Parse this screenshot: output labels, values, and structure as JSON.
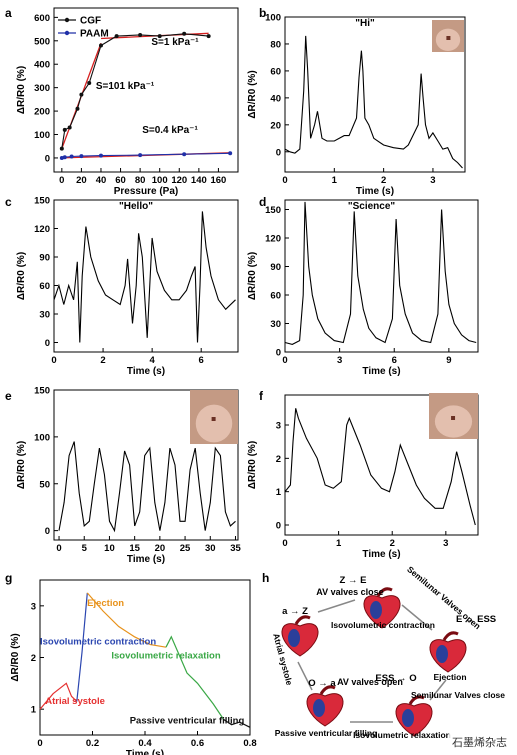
{
  "watermark": "石墨烯杂志",
  "chart_data": [
    {
      "panel": "a",
      "type": "line",
      "xlabel": "Pressure (Pa)",
      "ylabel": "ΔR/R0 (%)",
      "xlim": [
        -8,
        180
      ],
      "ylim": [
        -60,
        640
      ],
      "xticks": [
        0,
        20,
        40,
        60,
        80,
        100,
        120,
        140,
        160
      ],
      "yticks": [
        0,
        100,
        200,
        300,
        400,
        500,
        600
      ],
      "legend": [
        "CGF",
        "PAAM"
      ],
      "legend_position": "top-left",
      "series": [
        {
          "name": "CGF",
          "color": "#111111",
          "marker": "circle",
          "x": [
            0,
            3,
            8,
            16,
            20,
            28,
            40,
            56,
            80,
            100,
            125,
            150
          ],
          "y": [
            40,
            120,
            130,
            210,
            270,
            320,
            480,
            520,
            525,
            520,
            530,
            520
          ]
        },
        {
          "name": "PAAM",
          "color": "#2030a8",
          "marker": "circle",
          "x": [
            0,
            3,
            10,
            20,
            40,
            80,
            125,
            172
          ],
          "y": [
            0,
            3,
            6,
            8,
            10,
            12,
            16,
            20
          ]
        }
      ],
      "fits": [
        {
          "color": "#d62020",
          "x": [
            0,
            40
          ],
          "y": [
            40,
            490
          ]
        },
        {
          "color": "#d62020",
          "x": [
            40,
            150
          ],
          "y": [
            510,
            532
          ]
        },
        {
          "color": "#d62020",
          "x": [
            0,
            172
          ],
          "y": [
            0,
            22
          ]
        }
      ],
      "annotations": [
        "S=1 kPa⁻¹",
        "S=101 kPa⁻¹",
        "S=0.4 kPa⁻¹"
      ]
    },
    {
      "panel": "b",
      "type": "line",
      "title": "\"Hi\"",
      "xlabel": "Time (s)",
      "ylabel": "ΔR/R0 (%)",
      "xlim": [
        0,
        3.65
      ],
      "ylim": [
        -15,
        100
      ],
      "xticks": [
        0,
        1,
        2,
        3
      ],
      "yticks": [
        0,
        20,
        40,
        60,
        80,
        100
      ],
      "inset_photo": true,
      "series": [
        {
          "x": [
            0,
            0.1,
            0.2,
            0.3,
            0.38,
            0.42,
            0.46,
            0.52,
            0.6,
            0.66,
            0.75,
            0.85,
            1.0,
            1.2,
            1.3,
            1.45,
            1.5,
            1.55,
            1.58,
            1.62,
            1.7,
            1.8,
            2.0,
            2.2,
            2.4,
            2.5,
            2.7,
            2.76,
            2.8,
            2.85,
            2.92,
            3.0,
            3.1,
            3.2,
            3.3,
            3.4,
            3.5,
            3.6
          ],
          "y": [
            2,
            0,
            -1,
            2,
            45,
            86,
            60,
            10,
            20,
            30,
            10,
            8,
            8,
            12,
            12,
            25,
            55,
            75,
            60,
            25,
            20,
            10,
            5,
            3,
            2,
            5,
            20,
            58,
            40,
            20,
            10,
            14,
            8,
            2,
            3,
            -5,
            -8,
            -12
          ]
        }
      ]
    },
    {
      "panel": "c",
      "type": "line",
      "title": "\"Hello\"",
      "xlabel": "Time (s)",
      "ylabel": "ΔR/R0 (%)",
      "xlim": [
        0,
        7.5
      ],
      "ylim": [
        -10,
        150
      ],
      "xticks": [
        0,
        2,
        4,
        6
      ],
      "yticks": [
        0,
        30,
        60,
        90,
        120,
        150
      ],
      "series": [
        {
          "x": [
            0,
            0.2,
            0.4,
            0.6,
            0.8,
            0.95,
            1.05,
            1.15,
            1.3,
            1.5,
            1.8,
            2.1,
            2.4,
            2.7,
            2.9,
            3.0,
            3.2,
            3.35,
            3.45,
            3.6,
            3.8,
            4.0,
            4.2,
            4.5,
            4.8,
            5.1,
            5.4,
            5.6,
            5.75,
            5.85,
            5.95,
            6.05,
            6.2,
            6.4,
            6.7,
            7.0,
            7.4
          ],
          "y": [
            45,
            60,
            40,
            60,
            45,
            85,
            0,
            70,
            122,
            90,
            65,
            50,
            45,
            40,
            60,
            88,
            20,
            60,
            115,
            90,
            5,
            110,
            75,
            55,
            45,
            45,
            55,
            70,
            80,
            0,
            60,
            138,
            100,
            70,
            45,
            35,
            45
          ]
        }
      ]
    },
    {
      "panel": "d",
      "type": "line",
      "title": "\"Science\"",
      "xlabel": "Time (s)",
      "ylabel": "ΔR/R0 (%)",
      "xlim": [
        0,
        10.6
      ],
      "ylim": [
        0,
        160
      ],
      "xticks": [
        0,
        3,
        6,
        9
      ],
      "yticks": [
        0,
        30,
        60,
        90,
        120,
        150
      ],
      "series": [
        {
          "x": [
            0,
            0.4,
            0.8,
            1.0,
            1.1,
            1.3,
            1.5,
            1.8,
            2.2,
            2.7,
            3.2,
            3.6,
            3.8,
            4.0,
            4.3,
            4.6,
            5.0,
            5.5,
            5.9,
            6.1,
            6.3,
            6.6,
            7.0,
            7.5,
            8.0,
            8.4,
            8.6,
            8.8,
            9.0,
            9.3,
            9.7,
            10.1,
            10.5
          ],
          "y": [
            10,
            8,
            12,
            60,
            158,
            90,
            60,
            35,
            20,
            12,
            10,
            40,
            148,
            80,
            45,
            25,
            15,
            10,
            35,
            140,
            70,
            40,
            20,
            12,
            10,
            40,
            150,
            85,
            50,
            30,
            18,
            12,
            10
          ]
        }
      ]
    },
    {
      "panel": "e",
      "type": "line",
      "xlabel": "Time (s)",
      "ylabel": "ΔR/R0 (%)",
      "xlim": [
        -1,
        35.5
      ],
      "ylim": [
        -10,
        150
      ],
      "xticks": [
        0,
        5,
        10,
        15,
        20,
        25,
        30,
        35
      ],
      "yticks": [
        0,
        50,
        100,
        150
      ],
      "inset_photo": true,
      "series": [
        {
          "x": [
            0,
            1,
            2,
            3,
            4,
            5,
            6,
            7,
            8,
            9,
            10,
            11,
            12,
            13,
            14,
            15,
            16,
            17,
            18,
            19,
            20,
            21,
            22,
            23,
            24,
            25,
            26,
            27,
            28,
            29,
            30,
            31,
            32,
            33,
            34,
            35
          ],
          "y": [
            0,
            30,
            80,
            95,
            40,
            5,
            10,
            50,
            88,
            60,
            10,
            0,
            40,
            85,
            70,
            5,
            20,
            80,
            88,
            30,
            0,
            30,
            88,
            70,
            10,
            10,
            65,
            88,
            40,
            0,
            30,
            88,
            80,
            20,
            5,
            10
          ]
        }
      ]
    },
    {
      "panel": "f",
      "type": "line",
      "xlabel": "Time (s)",
      "ylabel": "ΔR/R0 (%)",
      "xlim": [
        0,
        3.6
      ],
      "ylim": [
        -0.3,
        3.9
      ],
      "xticks": [
        0,
        1,
        2,
        3
      ],
      "yticks": [
        0,
        1,
        2,
        3
      ],
      "inset_photo": true,
      "series": [
        {
          "x": [
            0,
            0.1,
            0.15,
            0.2,
            0.25,
            0.4,
            0.6,
            0.75,
            0.9,
            1.05,
            1.15,
            1.2,
            1.4,
            1.6,
            1.8,
            1.95,
            2.05,
            2.15,
            2.3,
            2.45,
            2.6,
            2.8,
            2.95,
            3.1,
            3.2,
            3.3,
            3.45,
            3.55
          ],
          "y": [
            1.0,
            1.2,
            2.5,
            3.5,
            3.2,
            2.6,
            2.0,
            1.2,
            1.1,
            1.3,
            3.0,
            3.2,
            2.4,
            1.5,
            1.1,
            1.0,
            1.6,
            2.4,
            1.8,
            1.2,
            0.8,
            0.5,
            0.5,
            1.3,
            2.2,
            1.6,
            0.6,
            0.0
          ]
        }
      ]
    },
    {
      "panel": "g",
      "type": "line",
      "xlabel": "Time (s)",
      "ylabel": "ΔR/R0 (%)",
      "xlim": [
        0,
        0.8
      ],
      "ylim": [
        0.5,
        3.5
      ],
      "xticks": [
        0.0,
        0.2,
        0.4,
        0.6,
        0.8
      ],
      "yticks": [
        1,
        2,
        3
      ],
      "segments": [
        {
          "name": "Atrial systole",
          "color": "#e53030",
          "x": [
            0.0,
            0.05,
            0.1,
            0.12,
            0.14
          ],
          "y": [
            1.0,
            1.3,
            1.5,
            1.25,
            1.15
          ]
        },
        {
          "name": "Isovolumetric contraction",
          "color": "#2b46b0",
          "x": [
            0.14,
            0.16,
            0.18
          ],
          "y": [
            1.15,
            2.1,
            3.25
          ]
        },
        {
          "name": "Ejection",
          "color": "#e8921a",
          "x": [
            0.18,
            0.24,
            0.3,
            0.36,
            0.42,
            0.48
          ],
          "y": [
            3.25,
            2.9,
            2.6,
            2.4,
            2.25,
            2.2
          ]
        },
        {
          "name": "Isovolumetric relaxation",
          "color": "#3aa846",
          "x": [
            0.48,
            0.5,
            0.56,
            0.6,
            0.66,
            0.7
          ],
          "y": [
            2.2,
            2.4,
            1.7,
            1.5,
            1.1,
            0.8
          ]
        },
        {
          "name": "Passive ventricular filling",
          "color": "#111111",
          "x": [
            0.7,
            0.73,
            0.76,
            0.8
          ],
          "y": [
            0.8,
            0.7,
            0.75,
            0.65
          ]
        }
      ],
      "labels": [
        "Atrial systole",
        "Isovolumetric contraction",
        "Ejection",
        "Isovolumetric relaxation",
        "Passive ventricular filling"
      ]
    },
    {
      "panel": "h",
      "type": "diagram",
      "labels": {
        "top_code": "Z → E",
        "av_close": "AV valves close",
        "semilunar_open": "Semilunar Valves open",
        "iso_contraction": "Isovolumetric contraction",
        "az": "a → Z",
        "ess": "E → ESS",
        "ejection": "Ejection",
        "atrial_systole": "Atrial systole",
        "ess_o": "ESS → O",
        "semilunar_close": "Semilunar Valves close",
        "oa": "O → a",
        "av_open": "AV valves open",
        "passive": "Passive ventricular filling",
        "iso_relax": "Isovolumetric relaxation"
      }
    }
  ]
}
